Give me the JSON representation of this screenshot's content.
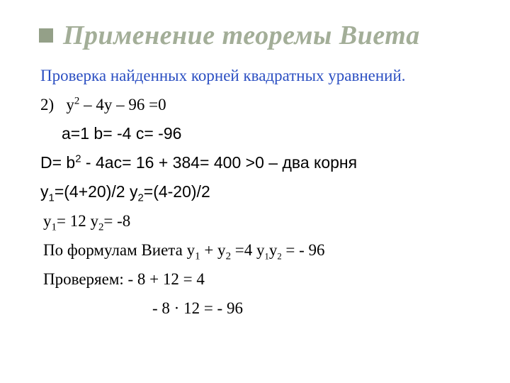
{
  "slide": {
    "title": "Применение теоремы Виета",
    "subtitle": "Проверка найденных корней квадратных уравнений.",
    "lines": {
      "eq_num": "2)",
      "eq_y": "у",
      "eq_sup2": "2",
      "eq_rest": " – 4у – 96 =0",
      "coeffs": "а=1  b= -4  с= -96",
      "disc_D": "D=  b",
      "disc_rest": " - 4ас= 16 + 384= 400 >0 – два корня",
      "roots_y1a": "у",
      "roots_y1b": "=(4+20)/2   у",
      "roots_y2b": "=(4-20)/2",
      "vals_y1a": "у",
      "vals_y1b": "= 12      у",
      "vals_y2b": "= -8",
      "vieta_pre": "По формулам Виета у",
      "vieta_mid": " + у",
      "vieta_eq": " =4    у",
      "vieta_prod": "у",
      "vieta_end": " = - 96",
      "check1": "Проверяем:  - 8 + 12 = 4",
      "check2": "- 8 · 12 = - 96",
      "sub1": "1",
      "sub2": "2",
      "sup2": "2"
    },
    "colors": {
      "title_color": "#a3ae98",
      "bullet_color": "#94a088",
      "subtitle_color": "#2b4fc2",
      "text_color": "#000000",
      "background": "#ffffff"
    },
    "typography": {
      "title_fontsize": 38,
      "body_fontsize": 23,
      "title_font": "Times New Roman italic bold",
      "body_font_sans": "Arial",
      "body_font_serif": "Times New Roman"
    }
  }
}
